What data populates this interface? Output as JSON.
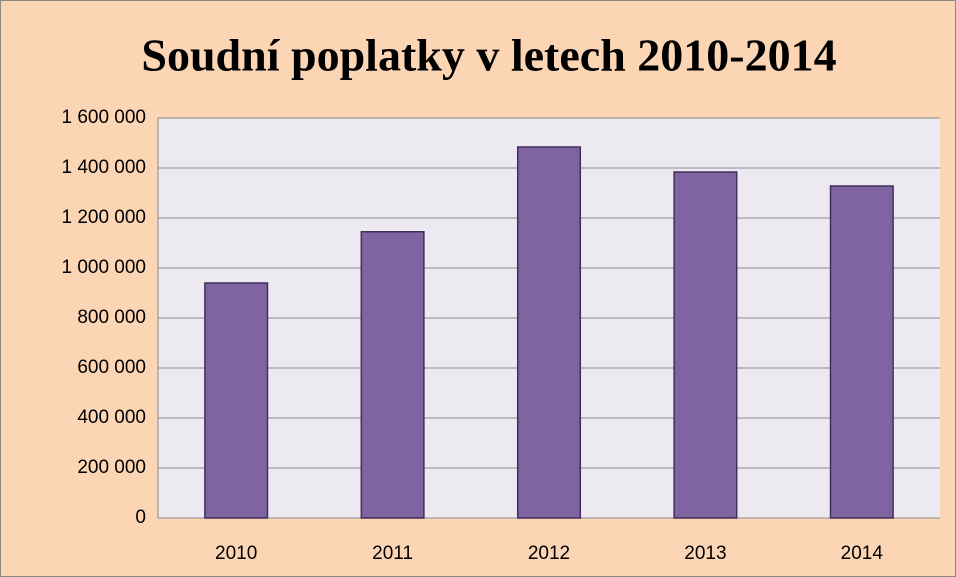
{
  "chart_data": {
    "type": "bar",
    "title": "Soudní poplatky v letech 2010-2014",
    "categories": [
      "2010",
      "2011",
      "2012",
      "2013",
      "2014"
    ],
    "values": [
      940000,
      1145000,
      1484000,
      1384000,
      1328000
    ],
    "color": "#8064a2",
    "ylim": [
      0,
      1600000
    ],
    "yticks": [
      0,
      {
        "value": 200000,
        "label": "200 000"
      },
      {
        "value": 400000,
        "label": "400 000"
      },
      {
        "value": 600000,
        "label": "600 000"
      },
      {
        "value": 800000,
        "label": "800 000"
      },
      {
        "value": 1000000,
        "label": "1 000 000"
      },
      {
        "value": 1200000,
        "label": "1 200 000"
      },
      {
        "value": 1400000,
        "label": "1 400 000"
      },
      {
        "value": 1600000,
        "label": "1 600 000"
      }
    ],
    "grid": true
  }
}
